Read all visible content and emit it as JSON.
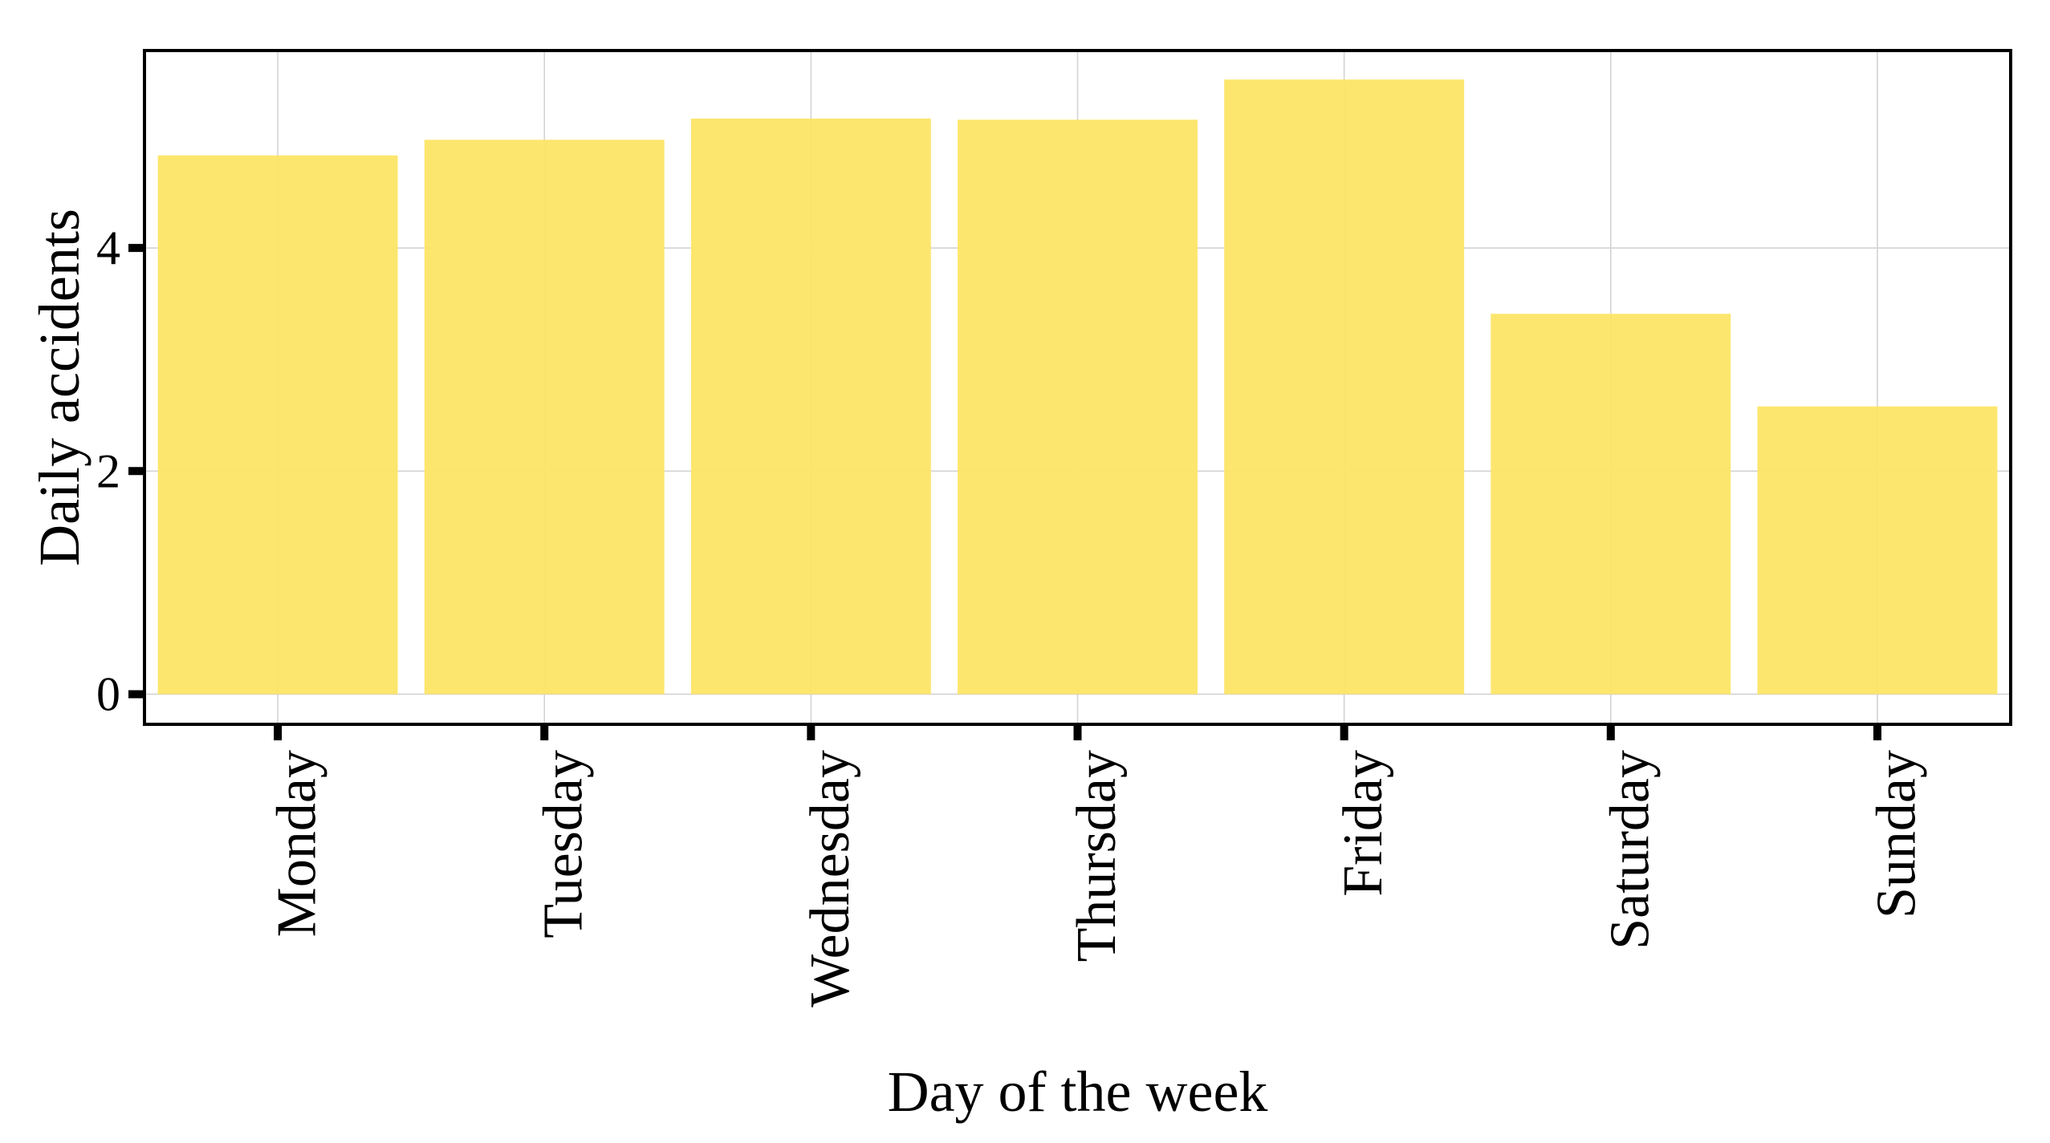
{
  "chart_data": {
    "type": "bar",
    "title": "",
    "xlabel": "Day of the week",
    "ylabel": "Daily accidents",
    "categories": [
      "Monday",
      "Tuesday",
      "Wednesday",
      "Thursday",
      "Friday",
      "Saturday",
      "Sunday"
    ],
    "values": [
      4.83,
      4.97,
      5.16,
      5.15,
      5.51,
      3.41,
      2.58
    ],
    "ylim": [
      -0.27,
      5.77
    ],
    "yticks": [
      0,
      2,
      4
    ],
    "ytick_labels": [
      "0",
      "2",
      "4"
    ],
    "grid": true,
    "legend": "none",
    "colors": {
      "bar": "#FDE566",
      "grid": "#D3D3D3",
      "frame": "#000000",
      "background": "#FFFFFF"
    }
  }
}
